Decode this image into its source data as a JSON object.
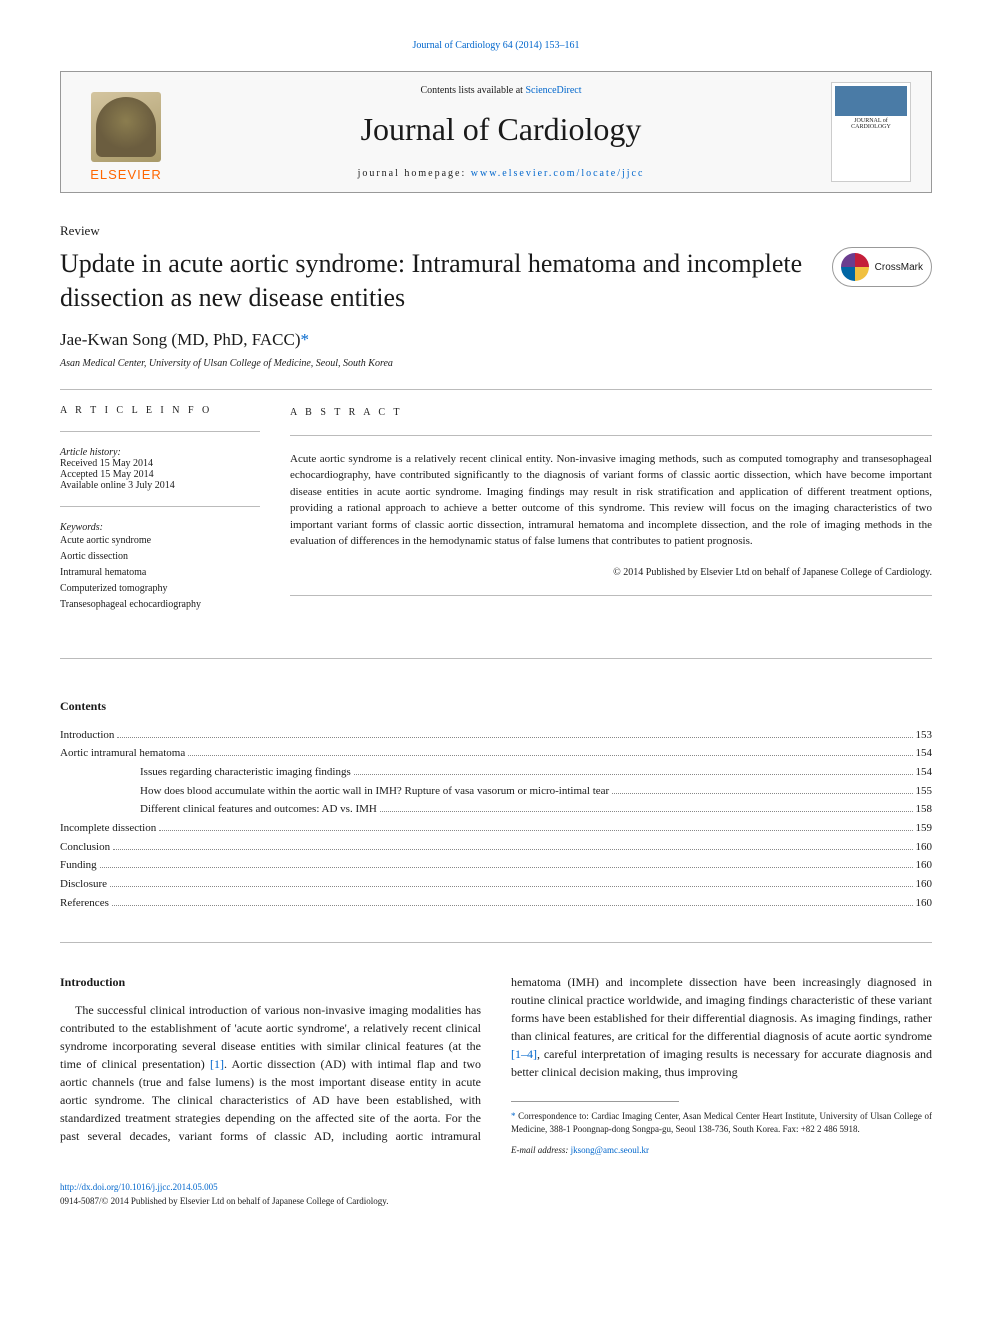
{
  "header": {
    "citation": "Journal of Cardiology 64 (2014) 153–161",
    "contents_text": "Contents lists available at ",
    "contents_link": "ScienceDirect",
    "journal_name": "Journal of Cardiology",
    "homepage_label": "journal homepage: ",
    "homepage_url": "www.elsevier.com/locate/jjcc",
    "publisher": "ELSEVIER",
    "cover_top": "",
    "cover_title": "JOURNAL of CARDIOLOGY"
  },
  "crossmark": "CrossMark",
  "article": {
    "type": "Review",
    "title": "Update in acute aortic syndrome: Intramural hematoma and incomplete dissection as new disease entities",
    "author": "Jae-Kwan Song (MD, PhD, FACC)",
    "affiliation": "Asan Medical Center, University of Ulsan College of Medicine, Seoul, South Korea"
  },
  "info": {
    "heading": "A R T I C L E   I N F O",
    "history_label": "Article history:",
    "received": "Received 15 May 2014",
    "accepted": "Accepted 15 May 2014",
    "online": "Available online 3 July 2014",
    "keywords_label": "Keywords:",
    "keywords": [
      "Acute aortic syndrome",
      "Aortic dissection",
      "Intramural hematoma",
      "Computerized tomography",
      "Transesophageal echocardiography"
    ]
  },
  "abstract": {
    "heading": "A B S T R A C T",
    "text": "Acute aortic syndrome is a relatively recent clinical entity. Non-invasive imaging methods, such as computed tomography and transesophageal echocardiography, have contributed significantly to the diagnosis of variant forms of classic aortic dissection, which have become important disease entities in acute aortic syndrome. Imaging findings may result in risk stratification and application of different treatment options, providing a rational approach to achieve a better outcome of this syndrome. This review will focus on the imaging characteristics of two important variant forms of classic aortic dissection, intramural hematoma and incomplete dissection, and the role of imaging methods in the evaluation of differences in the hemodynamic status of false lumens that contributes to patient prognosis.",
    "copyright": "© 2014 Published by Elsevier Ltd on behalf of Japanese College of Cardiology."
  },
  "toc": {
    "heading": "Contents",
    "items": [
      {
        "label": "Introduction",
        "page": "153",
        "indent": 0
      },
      {
        "label": "Aortic intramural hematoma",
        "page": "154",
        "indent": 0
      },
      {
        "label": "Issues regarding characteristic imaging findings",
        "page": "154",
        "indent": 2
      },
      {
        "label": "How does blood accumulate within the aortic wall in IMH? Rupture of vasa vasorum or micro-intimal tear",
        "page": "155",
        "indent": 2
      },
      {
        "label": "Different clinical features and outcomes: AD vs. IMH",
        "page": "158",
        "indent": 2
      },
      {
        "label": "Incomplete dissection",
        "page": "159",
        "indent": 0
      },
      {
        "label": "Conclusion",
        "page": "160",
        "indent": 0
      },
      {
        "label": "Funding",
        "page": "160",
        "indent": 0
      },
      {
        "label": "Disclosure",
        "page": "160",
        "indent": 0
      },
      {
        "label": "References",
        "page": "160",
        "indent": 0
      }
    ]
  },
  "body": {
    "heading": "Introduction",
    "p1a": "The successful clinical introduction of various non-invasive imaging modalities has contributed to the establishment of 'acute aortic syndrome', a relatively recent clinical syndrome incorporating several disease entities with similar clinical features (at the time of clinical presentation) ",
    "p1_ref": "[1]",
    "p1b": ". Aortic dissection (AD) with",
    "p2a": "intimal flap and two aortic channels (true and false lumens) is the most important disease entity in acute aortic syndrome. The clinical characteristics of AD have been established, with standardized treatment strategies depending on the affected site of the aorta. For the past several decades, variant forms of classic AD, including aortic intramural hematoma (IMH) and incomplete dissection have been increasingly diagnosed in routine clinical practice worldwide, and imaging findings characteristic of these variant forms have been established for their differential diagnosis. As imaging findings, rather than clinical features, are critical for the differential diagnosis of acute aortic syndrome ",
    "p2_ref": "[1–4]",
    "p2b": ", careful interpretation of imaging results is necessary for accurate diagnosis and better clinical decision making, thus improving"
  },
  "footnote": {
    "correspondence": "Correspondence to: Cardiac Imaging Center, Asan Medical Center Heart Institute, University of Ulsan College of Medicine, 388-1 Poongnap-dong Songpa-gu, Seoul 138-736, South Korea. Fax: +82 2 486 5918.",
    "email_label": "E-mail address: ",
    "email": "jksong@amc.seoul.kr"
  },
  "footer": {
    "doi": "http://dx.doi.org/10.1016/j.jjcc.2014.05.005",
    "issn": "0914-5087/© 2014 Published by Elsevier Ltd on behalf of Japanese College of Cardiology."
  },
  "colors": {
    "link": "#0066cc",
    "orange": "#ff6600",
    "border": "#999999",
    "text": "#1a1a1a"
  }
}
